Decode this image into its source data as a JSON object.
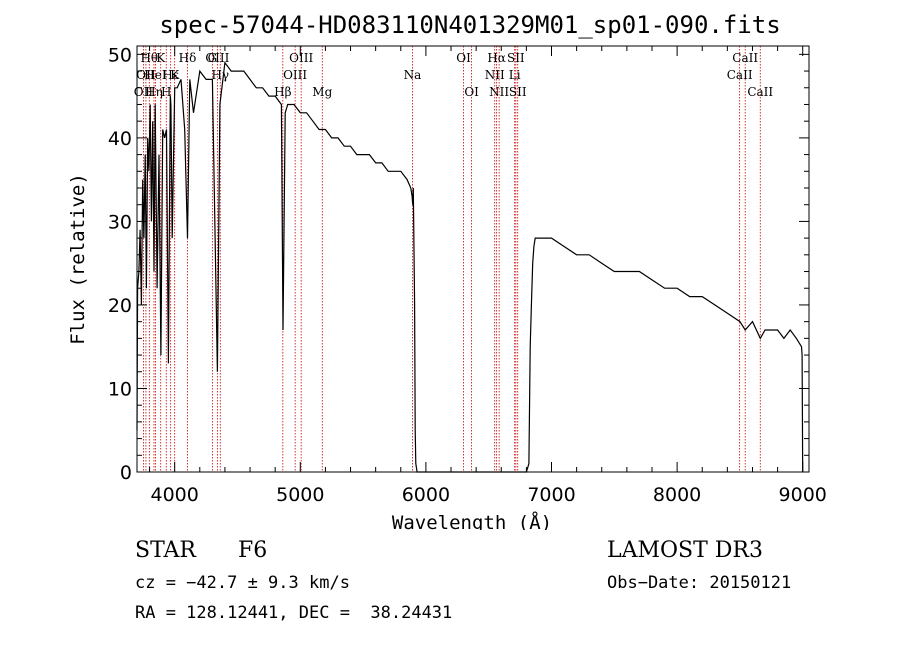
{
  "chart_data": {
    "type": "line",
    "title": "spec-57044-HD083110N401329M01_sp01-090.fits",
    "xlabel": "Wavelength (Å)",
    "ylabel": "Flux (relative)",
    "xlim": [
      3700,
      9050
    ],
    "ylim": [
      0,
      51
    ],
    "x_ticks": [
      4000,
      5000,
      6000,
      7000,
      8000,
      9000
    ],
    "y_ticks": [
      0,
      10,
      20,
      30,
      40,
      50
    ],
    "grid": false,
    "series": [
      {
        "x": [
          3700,
          3705,
          3715,
          3725,
          3735,
          3745,
          3755,
          3765,
          3775,
          3785,
          3795,
          3805,
          3815,
          3825,
          3835,
          3845,
          3860,
          3875,
          3890,
          3905,
          3920,
          3935,
          3950,
          3965,
          3970,
          3980,
          4000,
          4020,
          4050,
          4080,
          4102,
          4120,
          4150,
          4200,
          4250,
          4300,
          4340,
          4360,
          4400,
          4450,
          4500,
          4550,
          4600,
          4650,
          4700,
          4750,
          4800,
          4850,
          4862,
          4880,
          4900,
          4950,
          5000,
          5050,
          5100,
          5150,
          5200,
          5250,
          5300,
          5350,
          5400,
          5450,
          5500,
          5550,
          5600,
          5650,
          5700,
          5750,
          5800,
          5850,
          5880,
          5890,
          5895,
          5900,
          5910,
          5915,
          5920,
          5930,
          5935,
          6000,
          6100,
          6200,
          6300,
          6400,
          6500,
          6600,
          6700,
          6750,
          6800,
          6820,
          6830,
          6840,
          6850,
          6860,
          6870,
          6900,
          6950,
          7000,
          7100,
          7200,
          7300,
          7400,
          7500,
          7600,
          7700,
          7800,
          7900,
          8000,
          8100,
          8200,
          8300,
          8400,
          8500,
          8542,
          8600,
          8662,
          8700,
          8800,
          8850,
          8900,
          8950,
          8990,
          8995,
          9000
        ],
        "y": [
          5,
          22,
          24,
          29,
          20,
          35,
          28,
          38,
          22,
          40,
          36,
          44,
          30,
          42,
          24,
          44,
          22,
          38,
          14,
          41,
          40,
          41,
          13,
          45,
          44,
          28,
          46,
          46,
          47,
          41,
          28,
          47,
          43,
          48,
          47,
          47,
          12,
          44,
          49,
          48,
          48,
          48,
          47,
          46,
          46,
          45,
          45,
          44,
          17,
          43,
          44,
          44,
          43,
          43,
          42,
          41,
          41,
          40,
          40,
          39,
          39,
          38,
          38,
          38,
          37,
          37,
          36,
          36,
          36,
          35,
          34,
          33,
          32,
          34,
          20,
          5,
          1,
          0,
          0,
          0,
          0,
          0,
          0,
          0,
          0,
          0,
          0,
          0,
          0,
          1,
          15,
          20,
          25,
          27,
          28,
          28,
          28,
          28,
          27,
          26,
          26,
          25,
          24,
          24,
          24,
          23,
          22,
          22,
          21,
          21,
          20,
          19,
          18,
          17,
          18,
          16,
          17,
          17,
          16,
          17,
          16,
          15,
          14,
          0
        ]
      }
    ],
    "annotations": [
      {
        "wavelength": 3751,
        "row": 2,
        "label": "OII"
      },
      {
        "wavelength": 3771,
        "row": 1,
        "label": "OII"
      },
      {
        "wavelength": 3798,
        "row": 0,
        "label": "Hθ"
      },
      {
        "wavelength": 3835,
        "row": 2,
        "label": "Hη"
      },
      {
        "wavelength": 3847,
        "row": 1,
        "label": "HeI"
      },
      {
        "wavelength": 3889,
        "row": 0,
        "label": "K"
      },
      {
        "wavelength": 3933,
        "row": 2,
        "label": "H"
      },
      {
        "wavelength": 3968,
        "row": 1,
        "label": "Hε"
      },
      {
        "wavelength": 4000,
        "row": 1,
        "label": "K"
      },
      {
        "wavelength": 4102,
        "row": 0,
        "label": "Hδ"
      },
      {
        "wavelength": 4300,
        "row": 0,
        "label": "G"
      },
      {
        "wavelength": 4340,
        "row": 0,
        "label": "OIII"
      },
      {
        "wavelength": 4363,
        "row": 1,
        "label": "Hγ"
      },
      {
        "wavelength": 4861,
        "row": 2,
        "label": "Hβ"
      },
      {
        "wavelength": 4959,
        "row": 1,
        "label": "OIII"
      },
      {
        "wavelength": 5007,
        "row": 0,
        "label": "OIII"
      },
      {
        "wavelength": 5175,
        "row": 2,
        "label": "Mg"
      },
      {
        "wavelength": 5893,
        "row": 1,
        "label": "Na"
      },
      {
        "wavelength": 6300,
        "row": 0,
        "label": "OI"
      },
      {
        "wavelength": 6364,
        "row": 2,
        "label": "OI"
      },
      {
        "wavelength": 6548,
        "row": 1,
        "label": "NII"
      },
      {
        "wavelength": 6563,
        "row": 0,
        "label": "Hα"
      },
      {
        "wavelength": 6583,
        "row": 2,
        "label": "NII"
      },
      {
        "wavelength": 6707,
        "row": 1,
        "label": "Li"
      },
      {
        "wavelength": 6716,
        "row": 0,
        "label": "SII"
      },
      {
        "wavelength": 6731,
        "row": 2,
        "label": "SII"
      },
      {
        "wavelength": 8498,
        "row": 1,
        "label": "CaII"
      },
      {
        "wavelength": 8542,
        "row": 0,
        "label": "CaII"
      },
      {
        "wavelength": 8662,
        "row": 2,
        "label": "CaII"
      }
    ]
  },
  "info": {
    "object_class": "STAR",
    "subclass": "F6",
    "cz": "cz = −42.7 ± 9.3 km/s",
    "radec": "RA = 128.12441, DEC =  38.24431",
    "survey": "LAMOST DR3",
    "obs_date": "Obs−Date: 20150121"
  },
  "colors": {
    "spectrum": "#000000",
    "line_markers": "#cc0000"
  }
}
